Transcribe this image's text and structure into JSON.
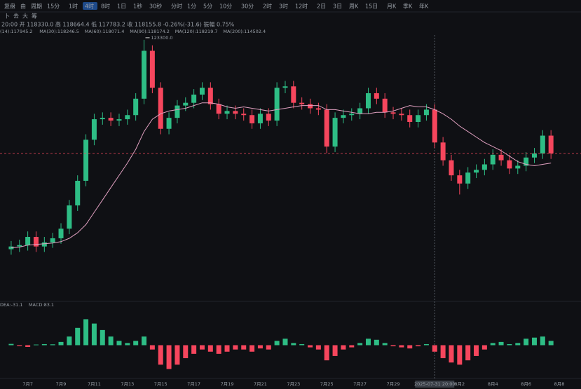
{
  "toolbar": {
    "items": [
      "复盘",
      "由",
      "周期",
      "15分",
      "1时",
      "4时",
      "8时",
      "1日",
      "1秒",
      "30秒",
      "分时",
      "1分",
      "5分",
      "10分",
      "30分",
      "2时",
      "3时",
      "12时",
      "2日",
      "3日",
      "周K",
      "15日",
      "月K",
      "季K",
      "年K"
    ],
    "active": "4时"
  },
  "tools": [
    "卜",
    "去",
    "大",
    "筹"
  ],
  "ohlc_line": "20:00 开 118330.0 高 118664.4 低 117783.2 收 118155.8 -0.26%(-31.6) 振幅 0.75%",
  "ma_legend": [
    {
      "text": "(14):117945.2",
      "color": "#f0c420"
    },
    {
      "text": "MA(30):118246.5",
      "color": "#e060c0"
    },
    {
      "text": "MA(60):118071.4",
      "color": "#c0c0c0"
    },
    {
      "text": "MA(90):118174.2",
      "color": "#e0a080"
    },
    {
      "text": "MA(120):118219.7",
      "color": "#a080e0"
    },
    {
      "text": "MA(200):114502.4",
      "color": "#30c0c0"
    }
  ],
  "macd_legend": [
    {
      "text": "DEA:-31.1",
      "color": "#f0c420"
    },
    {
      "text": "MACD:83.1",
      "color": "#30c0a0"
    }
  ],
  "chart_data": {
    "type": "candlestick",
    "categories": [
      null,
      null,
      "7月7",
      null,
      null,
      null,
      "7月9",
      null,
      null,
      null,
      "7月11",
      null,
      null,
      null,
      "7月13",
      null,
      null,
      null,
      "7月15",
      null,
      null,
      null,
      "7月17",
      null,
      null,
      null,
      "7月19",
      null,
      null,
      null,
      "7月21",
      null,
      null,
      null,
      "7月23",
      null,
      null,
      null,
      "7月25",
      null,
      null,
      null,
      "7月27",
      null,
      null,
      null,
      "7月29",
      null,
      null,
      null,
      null,
      "2025-07-31 20:00",
      null,
      null,
      "8月2",
      null,
      null,
      null,
      "8月4",
      null,
      null,
      null,
      "8月6",
      null,
      null,
      null,
      "8月8",
      null
    ],
    "open": [
      108000,
      108200,
      108300,
      108900,
      108200,
      108500,
      108800,
      109500,
      111200,
      113000,
      116000,
      117500,
      117600,
      117400,
      117500,
      117800,
      119000,
      122500,
      119800,
      116800,
      117600,
      118500,
      118700,
      119300,
      119800,
      118600,
      117900,
      118100,
      117900,
      117800,
      117200,
      117900,
      117400,
      119800,
      119900,
      118700,
      118600,
      118300,
      118200,
      115500,
      117600,
      117800,
      117900,
      118300,
      119400,
      119000,
      118000,
      117900,
      117800,
      117300,
      117800,
      118200,
      115800,
      114500,
      113400,
      112800,
      113600,
      113800,
      114200,
      114900,
      114500,
      113900,
      114100,
      114700,
      115000,
      116300,
      null,
      null
    ],
    "high": [
      108600,
      108700,
      109300,
      109300,
      108900,
      109200,
      109900,
      111600,
      113400,
      116400,
      117900,
      118000,
      118000,
      117900,
      118200,
      119400,
      123300,
      122900,
      120200,
      118000,
      118900,
      119100,
      119700,
      120200,
      120200,
      119000,
      118500,
      118500,
      118300,
      118200,
      118300,
      118300,
      120200,
      120300,
      120300,
      119100,
      119000,
      118700,
      118600,
      118000,
      118200,
      118300,
      118700,
      119800,
      119800,
      119400,
      118400,
      118300,
      118200,
      118200,
      118600,
      118600,
      116200,
      114900,
      113800,
      114000,
      114200,
      114600,
      115300,
      115300,
      114900,
      114500,
      115100,
      115400,
      116700,
      116700,
      null,
      null
    ],
    "low": [
      107600,
      107800,
      107900,
      107800,
      107800,
      108100,
      108400,
      109100,
      110800,
      112600,
      115600,
      117100,
      117000,
      117000,
      117100,
      117400,
      118600,
      119400,
      116400,
      116400,
      117200,
      118100,
      118300,
      118900,
      118200,
      117500,
      117500,
      117500,
      117400,
      116800,
      116800,
      117000,
      117000,
      119400,
      118300,
      118200,
      117900,
      117800,
      115000,
      115100,
      117200,
      117400,
      117500,
      117900,
      118600,
      117600,
      117500,
      117400,
      116900,
      116900,
      117400,
      115400,
      114100,
      113000,
      112000,
      112400,
      113200,
      113400,
      113800,
      114100,
      113500,
      113500,
      113700,
      114300,
      114600,
      114600,
      null,
      null
    ],
    "close": [
      108200,
      108300,
      108900,
      108200,
      108500,
      108800,
      109500,
      111200,
      113000,
      116000,
      117500,
      117600,
      117400,
      117500,
      117800,
      119000,
      122500,
      119800,
      116800,
      117600,
      118500,
      118700,
      119300,
      119800,
      118600,
      117900,
      118100,
      117900,
      117800,
      117200,
      117900,
      117400,
      119800,
      119900,
      118700,
      118600,
      118300,
      118200,
      115500,
      117600,
      117800,
      117900,
      118300,
      119400,
      119000,
      118000,
      117900,
      117800,
      117300,
      117800,
      118200,
      115800,
      114500,
      113400,
      112800,
      113600,
      113800,
      114200,
      114900,
      114500,
      113900,
      114100,
      114700,
      115000,
      116300,
      115000,
      null,
      null
    ],
    "ma": {
      "name": "MA(30)",
      "color": "#e0a0c0",
      "values": [
        108100,
        108150,
        108300,
        108350,
        108400,
        108450,
        108550,
        108800,
        109200,
        109800,
        110700,
        111600,
        112500,
        113400,
        114300,
        115300,
        116600,
        117500,
        117900,
        118100,
        118200,
        118300,
        118500,
        118700,
        118700,
        118600,
        118400,
        118300,
        118400,
        118300,
        118200,
        118100,
        118200,
        118300,
        118400,
        118500,
        118500,
        118500,
        118200,
        118200,
        118100,
        118000,
        117900,
        117900,
        118000,
        118000,
        118100,
        118300,
        118500,
        118400,
        118400,
        118200,
        117900,
        117500,
        117000,
        116600,
        116200,
        115800,
        115500,
        115200,
        114800,
        114400,
        114200,
        114100,
        114200,
        114300,
        null,
        null
      ]
    },
    "ylim": [
      104700,
      125700
    ],
    "high_label": "123300.0",
    "up_color": "#2ebd85",
    "down_color": "#f6465d",
    "macd": {
      "values": [
        60,
        -40,
        -80,
        30,
        50,
        40,
        150,
        400,
        800,
        1200,
        1000,
        700,
        400,
        200,
        100,
        200,
        400,
        -200,
        -900,
        -1100,
        -900,
        -600,
        -400,
        -200,
        -300,
        -400,
        -300,
        -200,
        -200,
        -300,
        -150,
        -200,
        200,
        300,
        100,
        50,
        -100,
        -200,
        -700,
        -500,
        -200,
        -100,
        100,
        300,
        250,
        100,
        -50,
        -100,
        -150,
        -50,
        50,
        -300,
        -600,
        -800,
        -900,
        -700,
        -500,
        -200,
        100,
        150,
        50,
        100,
        300,
        350,
        400,
        200,
        null,
        null
      ],
      "ylim": [
        -1700,
        1700
      ]
    }
  }
}
